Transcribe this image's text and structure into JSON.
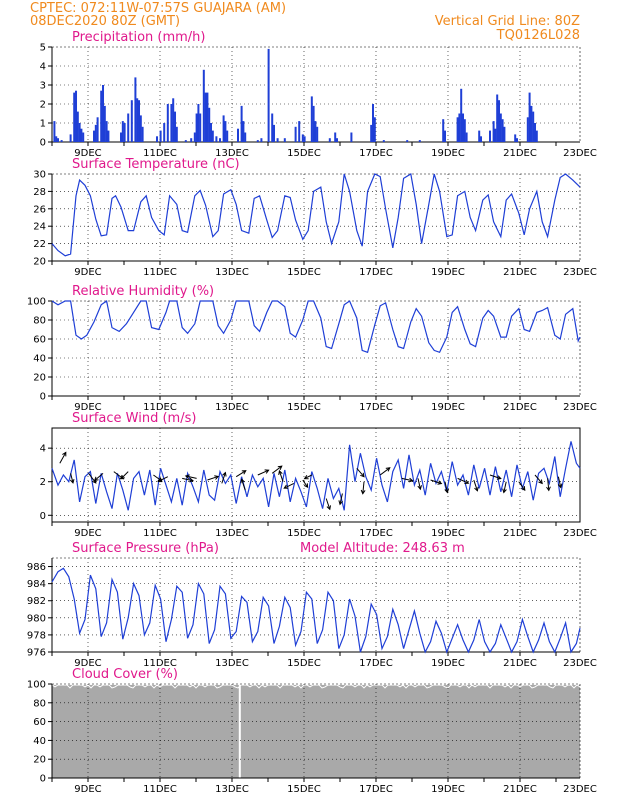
{
  "header": {
    "line1_left": "CPTEC:  072:11W-07:57S  GUAJARA (AM)",
    "line2_left": "08DEC2020 80Z (GMT)",
    "line1_right": "Vertical Grid Line: 80Z",
    "line2_right": "TQ0126L028"
  },
  "colors": {
    "header": "#f08a1e",
    "title": "#e0198c",
    "series": "#1f3fd6",
    "cloud": "#a9a9a9",
    "arrow": "#000000"
  },
  "x_labels": [
    "9DEC",
    "11DEC",
    "13DEC",
    "15DEC",
    "17DEC",
    "19DEC",
    "21DEC",
    "23DEC"
  ],
  "chart_data": [
    {
      "type": "bar",
      "title": "Precipitation (mm/h)",
      "ylim": [
        0,
        5
      ],
      "yticks": [
        "0",
        "1",
        "2",
        "3",
        "4",
        "5"
      ],
      "xrange_days": [
        8.333,
        23.0
      ],
      "bars": [
        [
          8.4,
          1.1
        ],
        [
          8.45,
          0.3
        ],
        [
          8.5,
          0.2
        ],
        [
          8.6,
          0.1
        ],
        [
          8.85,
          0.4
        ],
        [
          8.95,
          2.6
        ],
        [
          9.0,
          2.7
        ],
        [
          9.05,
          1.6
        ],
        [
          9.1,
          1.0
        ],
        [
          9.15,
          0.7
        ],
        [
          9.2,
          0.5
        ],
        [
          9.5,
          0.6
        ],
        [
          9.55,
          0.9
        ],
        [
          9.6,
          1.3
        ],
        [
          9.7,
          2.7
        ],
        [
          9.75,
          3.0
        ],
        [
          9.8,
          1.9
        ],
        [
          9.85,
          1.1
        ],
        [
          9.9,
          0.6
        ],
        [
          10.25,
          0.5
        ],
        [
          10.3,
          1.1
        ],
        [
          10.35,
          1.0
        ],
        [
          10.45,
          1.5
        ],
        [
          10.55,
          2.2
        ],
        [
          10.65,
          3.4
        ],
        [
          10.7,
          2.3
        ],
        [
          10.75,
          2.2
        ],
        [
          10.8,
          1.4
        ],
        [
          10.85,
          0.8
        ],
        [
          11.25,
          0.3
        ],
        [
          11.35,
          0.6
        ],
        [
          11.45,
          1.0
        ],
        [
          11.55,
          2.0
        ],
        [
          11.65,
          2.0
        ],
        [
          11.7,
          2.3
        ],
        [
          11.75,
          1.6
        ],
        [
          11.8,
          0.8
        ],
        [
          12.05,
          0.1
        ],
        [
          12.2,
          0.2
        ],
        [
          12.3,
          0.5
        ],
        [
          12.35,
          1.5
        ],
        [
          12.4,
          2.0
        ],
        [
          12.45,
          1.5
        ],
        [
          12.55,
          3.8
        ],
        [
          12.6,
          2.6
        ],
        [
          12.65,
          2.6
        ],
        [
          12.7,
          1.8
        ],
        [
          12.75,
          1.0
        ],
        [
          12.8,
          0.6
        ],
        [
          12.9,
          0.3
        ],
        [
          13.0,
          0.2
        ],
        [
          13.1,
          1.4
        ],
        [
          13.15,
          1.1
        ],
        [
          13.2,
          0.6
        ],
        [
          13.5,
          0.7
        ],
        [
          13.6,
          1.9
        ],
        [
          13.65,
          1.1
        ],
        [
          13.7,
          0.5
        ],
        [
          14.05,
          0.1
        ],
        [
          14.15,
          0.2
        ],
        [
          14.35,
          4.9
        ],
        [
          14.45,
          1.5
        ],
        [
          14.5,
          0.9
        ],
        [
          14.6,
          0.2
        ],
        [
          14.8,
          0.2
        ],
        [
          15.1,
          0.8
        ],
        [
          15.2,
          1.1
        ],
        [
          15.3,
          0.4
        ],
        [
          15.35,
          0.3
        ],
        [
          15.55,
          2.4
        ],
        [
          15.6,
          1.9
        ],
        [
          15.65,
          1.1
        ],
        [
          15.7,
          0.8
        ],
        [
          16.05,
          0.2
        ],
        [
          16.2,
          0.5
        ],
        [
          16.25,
          0.2
        ],
        [
          16.65,
          0.5
        ],
        [
          17.2,
          0.9
        ],
        [
          17.25,
          2.0
        ],
        [
          17.3,
          1.3
        ],
        [
          17.55,
          0.1
        ],
        [
          18.2,
          0.1
        ],
        [
          18.55,
          0.1
        ],
        [
          19.2,
          1.2
        ],
        [
          19.25,
          0.6
        ],
        [
          19.6,
          1.3
        ],
        [
          19.65,
          1.5
        ],
        [
          19.7,
          2.8
        ],
        [
          19.75,
          1.5
        ],
        [
          19.8,
          1.2
        ],
        [
          19.85,
          0.5
        ],
        [
          20.2,
          0.6
        ],
        [
          20.25,
          0.3
        ],
        [
          20.5,
          0.6
        ],
        [
          20.6,
          1.1
        ],
        [
          20.65,
          0.7
        ],
        [
          20.7,
          2.5
        ],
        [
          20.75,
          2.2
        ],
        [
          20.8,
          1.5
        ],
        [
          20.85,
          1.2
        ],
        [
          20.9,
          0.8
        ],
        [
          21.2,
          0.4
        ],
        [
          21.25,
          0.2
        ],
        [
          21.55,
          1.3
        ],
        [
          21.6,
          2.6
        ],
        [
          21.65,
          1.9
        ],
        [
          21.7,
          1.6
        ],
        [
          21.75,
          1.0
        ],
        [
          21.8,
          0.6
        ]
      ]
    },
    {
      "type": "line",
      "title": "Surface Temperature (nC)",
      "ylim": [
        20,
        30
      ],
      "yticks": [
        "20",
        "22",
        "24",
        "26",
        "28",
        "30"
      ],
      "x": [
        8.333,
        8.5,
        8.7,
        8.85,
        9.0,
        9.1,
        9.25,
        9.4,
        9.55,
        9.7,
        9.85,
        10.0,
        10.1,
        10.25,
        10.45,
        10.6,
        10.8,
        10.95,
        11.1,
        11.3,
        11.45,
        11.6,
        11.8,
        11.95,
        12.1,
        12.3,
        12.45,
        12.6,
        12.8,
        12.95,
        13.1,
        13.3,
        13.45,
        13.6,
        13.8,
        13.95,
        14.1,
        14.3,
        14.45,
        14.6,
        14.8,
        14.95,
        15.1,
        15.3,
        15.45,
        15.6,
        15.8,
        15.95,
        16.1,
        16.3,
        16.45,
        16.6,
        16.8,
        16.95,
        17.1,
        17.3,
        17.45,
        17.6,
        17.8,
        17.95,
        18.1,
        18.3,
        18.45,
        18.6,
        18.8,
        18.95,
        19.1,
        19.3,
        19.45,
        19.6,
        19.8,
        19.95,
        20.1,
        20.3,
        20.45,
        20.6,
        20.8,
        20.95,
        21.1,
        21.3,
        21.45,
        21.6,
        21.8,
        21.95,
        22.1,
        22.3,
        22.45,
        22.6,
        22.8,
        23.0
      ],
      "values": [
        22.0,
        21.2,
        20.6,
        20.8,
        27.5,
        29.3,
        28.7,
        27.5,
        24.8,
        22.9,
        23.0,
        27.2,
        27.5,
        26.2,
        23.5,
        23.5,
        26.8,
        27.5,
        25.0,
        23.5,
        23.0,
        27.5,
        26.5,
        23.5,
        23.3,
        27.5,
        28.1,
        26.4,
        22.8,
        23.5,
        27.7,
        28.2,
        26.5,
        23.5,
        23.2,
        27.2,
        27.5,
        24.7,
        22.7,
        23.5,
        27.5,
        27.3,
        24.7,
        22.5,
        23.5,
        28.0,
        28.5,
        24.5,
        22.0,
        24.5,
        30.0,
        28.0,
        23.5,
        21.7,
        28.0,
        30.0,
        29.7,
        26.0,
        21.5,
        25.0,
        29.5,
        30.0,
        26.5,
        22.0,
        26.5,
        30.0,
        28.0,
        22.8,
        23.0,
        27.5,
        28.0,
        25.0,
        23.5,
        27.0,
        27.6,
        24.5,
        22.8,
        27.0,
        27.7,
        25.5,
        23.0,
        26.0,
        28.0,
        24.5,
        22.8,
        27.0,
        29.6,
        30.0,
        29.3,
        28.5
      ]
    },
    {
      "type": "line",
      "title": "Relative Humidity (%)",
      "ylim": [
        0,
        100
      ],
      "yticks": [
        "0",
        "20",
        "40",
        "60",
        "80",
        "100"
      ],
      "x": [
        8.333,
        8.5,
        8.7,
        8.85,
        9.0,
        9.15,
        9.3,
        9.5,
        9.7,
        9.85,
        10.0,
        10.2,
        10.4,
        10.6,
        10.8,
        10.95,
        11.1,
        11.3,
        11.5,
        11.6,
        11.8,
        11.95,
        12.1,
        12.3,
        12.45,
        12.6,
        12.8,
        12.95,
        13.1,
        13.3,
        13.45,
        13.6,
        13.8,
        13.95,
        14.1,
        14.3,
        14.45,
        14.6,
        14.8,
        14.95,
        15.1,
        15.3,
        15.45,
        15.6,
        15.8,
        15.95,
        16.1,
        16.3,
        16.45,
        16.6,
        16.8,
        16.95,
        17.1,
        17.3,
        17.45,
        17.6,
        17.8,
        17.95,
        18.1,
        18.3,
        18.45,
        18.6,
        18.8,
        18.95,
        19.1,
        19.3,
        19.45,
        19.6,
        19.8,
        19.95,
        20.1,
        20.3,
        20.45,
        20.6,
        20.8,
        20.95,
        21.1,
        21.3,
        21.45,
        21.6,
        21.8,
        21.95,
        22.1,
        22.3,
        22.45,
        22.6,
        22.8,
        22.95,
        23.0
      ],
      "values": [
        100,
        96,
        100,
        100,
        64,
        60,
        64,
        78,
        96,
        100,
        72,
        68,
        76,
        88,
        100,
        100,
        72,
        70,
        88,
        100,
        100,
        72,
        66,
        76,
        100,
        100,
        100,
        74,
        66,
        80,
        100,
        100,
        100,
        74,
        68,
        88,
        100,
        100,
        94,
        66,
        62,
        80,
        100,
        100,
        82,
        52,
        50,
        76,
        96,
        100,
        82,
        48,
        46,
        75,
        95,
        98,
        70,
        52,
        50,
        78,
        92,
        84,
        56,
        48,
        46,
        62,
        88,
        94,
        70,
        55,
        52,
        82,
        90,
        84,
        62,
        62,
        84,
        92,
        70,
        68,
        88,
        90,
        93,
        64,
        60,
        86,
        92,
        58,
        62
      ]
    },
    {
      "type": "line",
      "title": "Surface Wind (m/s)",
      "ylim": [
        -0.4,
        5.2
      ],
      "yticks": [
        "0",
        "2",
        "4"
      ],
      "x": [
        8.333,
        8.5,
        8.65,
        8.8,
        8.95,
        9.1,
        9.25,
        9.4,
        9.55,
        9.7,
        9.85,
        10.0,
        10.15,
        10.3,
        10.45,
        10.6,
        10.75,
        10.9,
        11.05,
        11.2,
        11.35,
        11.5,
        11.65,
        11.8,
        11.95,
        12.1,
        12.25,
        12.4,
        12.55,
        12.7,
        12.85,
        13.0,
        13.15,
        13.3,
        13.45,
        13.6,
        13.75,
        13.9,
        14.05,
        14.2,
        14.35,
        14.5,
        14.65,
        14.8,
        14.95,
        15.1,
        15.25,
        15.4,
        15.55,
        15.7,
        15.85,
        16.0,
        16.15,
        16.3,
        16.45,
        16.6,
        16.75,
        16.9,
        17.05,
        17.2,
        17.35,
        17.5,
        17.65,
        17.8,
        17.95,
        18.1,
        18.25,
        18.4,
        18.55,
        18.7,
        18.85,
        19.0,
        19.15,
        19.3,
        19.45,
        19.6,
        19.75,
        19.9,
        20.05,
        20.2,
        20.35,
        20.5,
        20.65,
        20.8,
        20.95,
        21.1,
        21.25,
        21.4,
        21.55,
        21.7,
        21.85,
        22.0,
        22.15,
        22.3,
        22.45,
        22.6,
        22.75,
        22.9,
        23.0
      ],
      "values": [
        2.8,
        1.8,
        2.4,
        2.0,
        3.3,
        0.8,
        2.3,
        2.6,
        0.7,
        2.5,
        1.4,
        0.4,
        2.5,
        1.5,
        0.3,
        2.2,
        2.6,
        1.2,
        2.7,
        0.6,
        2.8,
        1.8,
        0.8,
        2.2,
        0.6,
        2.5,
        1.7,
        0.8,
        2.7,
        1.2,
        0.9,
        2.6,
        1.9,
        2.4,
        0.7,
        2.3,
        1.1,
        2.4,
        1.7,
        2.2,
        0.5,
        2.5,
        1.1,
        2.7,
        0.8,
        2.2,
        1.4,
        0.5,
        2.6,
        1.6,
        0.4,
        2.2,
        1.0,
        1.6,
        0.3,
        4.2,
        2.0,
        3.7,
        2.3,
        1.5,
        3.4,
        1.8,
        0.8,
        2.6,
        3.3,
        1.6,
        3.6,
        1.8,
        2.7,
        1.2,
        3.1,
        1.9,
        2.6,
        1.4,
        3.2,
        1.8,
        2.4,
        1.2,
        3.0,
        1.6,
        2.8,
        1.2,
        2.9,
        1.4,
        2.7,
        1.1,
        3.0,
        1.6,
        2.6,
        0.9,
        2.5,
        2.8,
        1.9,
        3.5,
        1.1,
        2.8,
        4.4,
        3.1,
        2.8
      ]
    },
    {
      "type": "line",
      "title": "Surface Pressure (hPa)",
      "ylim": [
        976,
        987
      ],
      "yticks": [
        "976",
        "978",
        "980",
        "982",
        "984",
        "986"
      ],
      "annotation": "Model Altitude:  248.63  m",
      "x": [
        8.333,
        8.5,
        8.65,
        8.8,
        8.95,
        9.1,
        9.25,
        9.4,
        9.55,
        9.7,
        9.85,
        10.0,
        10.15,
        10.3,
        10.45,
        10.6,
        10.75,
        10.9,
        11.05,
        11.2,
        11.35,
        11.5,
        11.65,
        11.8,
        11.95,
        12.1,
        12.25,
        12.4,
        12.55,
        12.7,
        12.85,
        13.0,
        13.15,
        13.3,
        13.45,
        13.6,
        13.75,
        13.9,
        14.05,
        14.2,
        14.35,
        14.5,
        14.65,
        14.8,
        14.95,
        15.1,
        15.25,
        15.4,
        15.55,
        15.7,
        15.85,
        16.0,
        16.15,
        16.3,
        16.45,
        16.6,
        16.75,
        16.9,
        17.05,
        17.2,
        17.35,
        17.5,
        17.65,
        17.8,
        17.95,
        18.1,
        18.25,
        18.4,
        18.55,
        18.7,
        18.85,
        19.0,
        19.15,
        19.3,
        19.45,
        19.6,
        19.75,
        19.9,
        20.05,
        20.2,
        20.35,
        20.5,
        20.65,
        20.8,
        20.95,
        21.1,
        21.25,
        21.4,
        21.55,
        21.7,
        21.85,
        22.0,
        22.15,
        22.3,
        22.45,
        22.6,
        22.75,
        22.9,
        23.0
      ],
      "values": [
        984.2,
        985.4,
        985.8,
        984.8,
        982.2,
        978.2,
        979.8,
        985.0,
        983.4,
        977.8,
        979.4,
        984.5,
        983.0,
        977.5,
        980.0,
        984.0,
        982.6,
        978.0,
        979.4,
        983.8,
        982.2,
        977.2,
        979.8,
        983.7,
        983.0,
        977.6,
        979.2,
        984.0,
        982.8,
        977.0,
        978.6,
        983.7,
        982.8,
        977.6,
        978.4,
        982.5,
        981.8,
        977.2,
        978.4,
        982.4,
        981.4,
        977.0,
        979.0,
        982.4,
        981.2,
        976.8,
        978.4,
        983.0,
        982.2,
        977.0,
        978.6,
        983.0,
        982.0,
        976.4,
        978.0,
        982.2,
        980.2,
        975.8,
        977.8,
        981.6,
        980.4,
        976.4,
        977.8,
        981.0,
        979.2,
        976.4,
        978.6,
        980.8,
        978.2,
        975.4,
        977.2,
        979.6,
        978.2,
        975.8,
        977.6,
        979.2,
        977.4,
        975.8,
        977.4,
        979.8,
        977.2,
        975.6,
        977.0,
        979.2,
        977.6,
        975.6,
        977.2,
        979.8,
        977.8,
        975.4,
        977.4,
        979.4,
        977.2,
        975.8,
        977.6,
        979.4,
        975.6,
        977.0,
        978.8
      ]
    },
    {
      "type": "area",
      "title": "Cloud Cover (%)",
      "ylim": [
        0,
        100
      ],
      "yticks": [
        "0",
        "20",
        "40",
        "60",
        "80",
        "100"
      ],
      "level": 99,
      "gap_at_day": 13.55
    }
  ]
}
